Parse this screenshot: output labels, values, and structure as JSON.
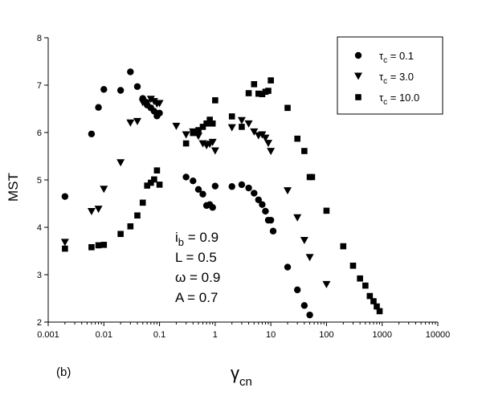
{
  "chart_data": {
    "type": "scatter",
    "x_scale": "log",
    "xlim": [
      0.001,
      10000
    ],
    "ylim": [
      2,
      8
    ],
    "xticks": [
      "0.001",
      "0.01",
      "0.1",
      "1",
      "10",
      "100",
      "1000",
      "10000"
    ],
    "yticks": [
      "2",
      "3",
      "4",
      "5",
      "6",
      "7",
      "8"
    ],
    "ylabel": "MST",
    "xlabel": {
      "main": "γ",
      "sub": "cn"
    },
    "panel_label": "(b)",
    "legend_position": "top-right",
    "grid": false,
    "series": [
      {
        "name": {
          "main": "τ",
          "sub": "c",
          "rest": " = 0.1"
        },
        "marker": "circle",
        "points": [
          [
            0.002,
            4.65
          ],
          [
            0.006,
            5.97
          ],
          [
            0.008,
            6.53
          ],
          [
            0.01,
            6.91
          ],
          [
            0.02,
            6.89
          ],
          [
            0.03,
            7.28
          ],
          [
            0.04,
            6.97
          ],
          [
            0.05,
            6.72
          ],
          [
            0.055,
            6.65
          ],
          [
            0.06,
            6.58
          ],
          [
            0.07,
            6.52
          ],
          [
            0.08,
            6.45
          ],
          [
            0.09,
            6.35
          ],
          [
            0.1,
            6.41
          ],
          [
            0.3,
            5.06
          ],
          [
            0.4,
            4.98
          ],
          [
            0.5,
            4.8
          ],
          [
            0.6,
            4.7
          ],
          [
            0.7,
            4.46
          ],
          [
            0.8,
            4.48
          ],
          [
            0.9,
            4.42
          ],
          [
            1.0,
            4.87
          ],
          [
            2.0,
            4.86
          ],
          [
            3.0,
            4.9
          ],
          [
            4.0,
            4.83
          ],
          [
            5.0,
            4.72
          ],
          [
            6.0,
            4.58
          ],
          [
            7.0,
            4.48
          ],
          [
            8.0,
            4.34
          ],
          [
            9.0,
            4.15
          ],
          [
            10.0,
            4.15
          ],
          [
            11.0,
            3.92
          ],
          [
            20.0,
            3.16
          ],
          [
            30.0,
            2.68
          ],
          [
            40.0,
            2.35
          ],
          [
            50.0,
            2.15
          ]
        ]
      },
      {
        "name": {
          "main": "τ",
          "sub": "c",
          "rest": " = 3.0"
        },
        "marker": "triangle-down",
        "points": [
          [
            0.002,
            3.68
          ],
          [
            0.006,
            4.33
          ],
          [
            0.008,
            4.38
          ],
          [
            0.01,
            4.8
          ],
          [
            0.02,
            5.36
          ],
          [
            0.03,
            6.2
          ],
          [
            0.04,
            6.23
          ],
          [
            0.05,
            6.63
          ],
          [
            0.06,
            6.62
          ],
          [
            0.07,
            6.7
          ],
          [
            0.08,
            6.65
          ],
          [
            0.09,
            6.6
          ],
          [
            0.1,
            6.61
          ],
          [
            0.2,
            6.13
          ],
          [
            0.3,
            5.95
          ],
          [
            0.4,
            6.01
          ],
          [
            0.5,
            5.92
          ],
          [
            0.6,
            5.76
          ],
          [
            0.7,
            5.72
          ],
          [
            0.8,
            5.75
          ],
          [
            0.9,
            5.79
          ],
          [
            1.0,
            5.61
          ],
          [
            2.0,
            6.1
          ],
          [
            3.0,
            6.25
          ],
          [
            4.0,
            6.18
          ],
          [
            5.0,
            6.01
          ],
          [
            6.0,
            5.93
          ],
          [
            7.0,
            5.95
          ],
          [
            8.0,
            5.88
          ],
          [
            9.0,
            5.77
          ],
          [
            10.0,
            5.6
          ],
          [
            20.0,
            4.77
          ],
          [
            30.0,
            4.2
          ],
          [
            40.0,
            3.72
          ],
          [
            50.0,
            3.36
          ],
          [
            100.0,
            2.79
          ]
        ]
      },
      {
        "name": {
          "main": "τ",
          "sub": "c",
          "rest": " = 10.0"
        },
        "marker": "square",
        "points": [
          [
            0.002,
            3.55
          ],
          [
            0.006,
            3.58
          ],
          [
            0.008,
            3.62
          ],
          [
            0.01,
            3.63
          ],
          [
            0.02,
            3.86
          ],
          [
            0.03,
            4.02
          ],
          [
            0.04,
            4.25
          ],
          [
            0.05,
            4.52
          ],
          [
            0.06,
            4.88
          ],
          [
            0.07,
            4.94
          ],
          [
            0.08,
            5.01
          ],
          [
            0.09,
            5.2
          ],
          [
            0.1,
            4.9
          ],
          [
            0.3,
            5.77
          ],
          [
            0.4,
            5.99
          ],
          [
            0.5,
            6.05
          ],
          [
            0.6,
            6.12
          ],
          [
            0.7,
            6.19
          ],
          [
            0.8,
            6.27
          ],
          [
            0.9,
            6.19
          ],
          [
            1.0,
            6.68
          ],
          [
            2.0,
            6.34
          ],
          [
            3.0,
            6.12
          ],
          [
            4.0,
            6.83
          ],
          [
            5.0,
            7.02
          ],
          [
            6.0,
            6.82
          ],
          [
            7.0,
            6.81
          ],
          [
            8.0,
            6.86
          ],
          [
            9.0,
            6.88
          ],
          [
            10.0,
            7.1
          ],
          [
            20.0,
            6.52
          ],
          [
            30.0,
            5.87
          ],
          [
            40.0,
            5.61
          ],
          [
            50.0,
            5.06
          ],
          [
            55.0,
            5.06
          ],
          [
            100.0,
            4.35
          ],
          [
            200.0,
            3.6
          ],
          [
            300.0,
            3.19
          ],
          [
            400.0,
            2.92
          ],
          [
            500.0,
            2.77
          ],
          [
            600.0,
            2.55
          ],
          [
            700.0,
            2.44
          ],
          [
            800.0,
            2.33
          ],
          [
            900.0,
            2.23
          ]
        ]
      }
    ],
    "annotations": [
      {
        "main": "i",
        "sub": "b",
        "rest": " = 0.9"
      },
      {
        "main": "L",
        "sub": "",
        "rest": " = 0.5"
      },
      {
        "main": "ω",
        "sub": "",
        "rest": " = 0.9"
      },
      {
        "main": "A",
        "sub": "",
        "rest": " = 0.7"
      }
    ]
  }
}
